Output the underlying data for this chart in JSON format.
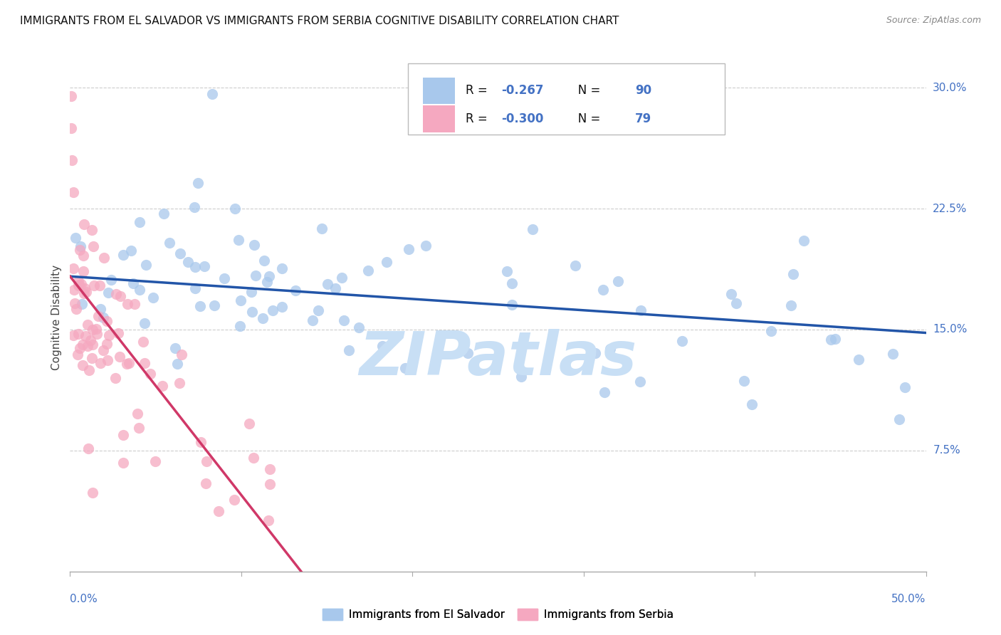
{
  "title": "IMMIGRANTS FROM EL SALVADOR VS IMMIGRANTS FROM SERBIA COGNITIVE DISABILITY CORRELATION CHART",
  "source": "Source: ZipAtlas.com",
  "ylabel": "Cognitive Disability",
  "ytick_labels": [
    "7.5%",
    "15.0%",
    "22.5%",
    "30.0%"
  ],
  "ytick_values": [
    0.075,
    0.15,
    0.225,
    0.3
  ],
  "xmin": 0.0,
  "xmax": 0.5,
  "ymin": 0.0,
  "ymax": 0.315,
  "el_salvador_scatter_color": "#a8c8ec",
  "serbia_scatter_color": "#f5a8c0",
  "el_salvador_line_color": "#2255a8",
  "serbia_line_color": "#d03868",
  "serbia_dash_color": "#f0b0c8",
  "watermark": "ZIPatlas",
  "watermark_color": "#c8dff5",
  "axis_color": "#4472c4",
  "grid_color": "#cccccc",
  "legend_r1_label": "R = ",
  "legend_r1_val": "-0.267",
  "legend_n1_label": "N = ",
  "legend_n1_val": "90",
  "legend_r2_label": "R = ",
  "legend_r2_val": "-0.300",
  "legend_n2_label": "N = ",
  "legend_n2_val": "79",
  "legend_scatter1": "Immigrants from El Salvador",
  "legend_scatter2": "Immigrants from Serbia",
  "N_el_salvador": 90,
  "N_serbia": 79
}
